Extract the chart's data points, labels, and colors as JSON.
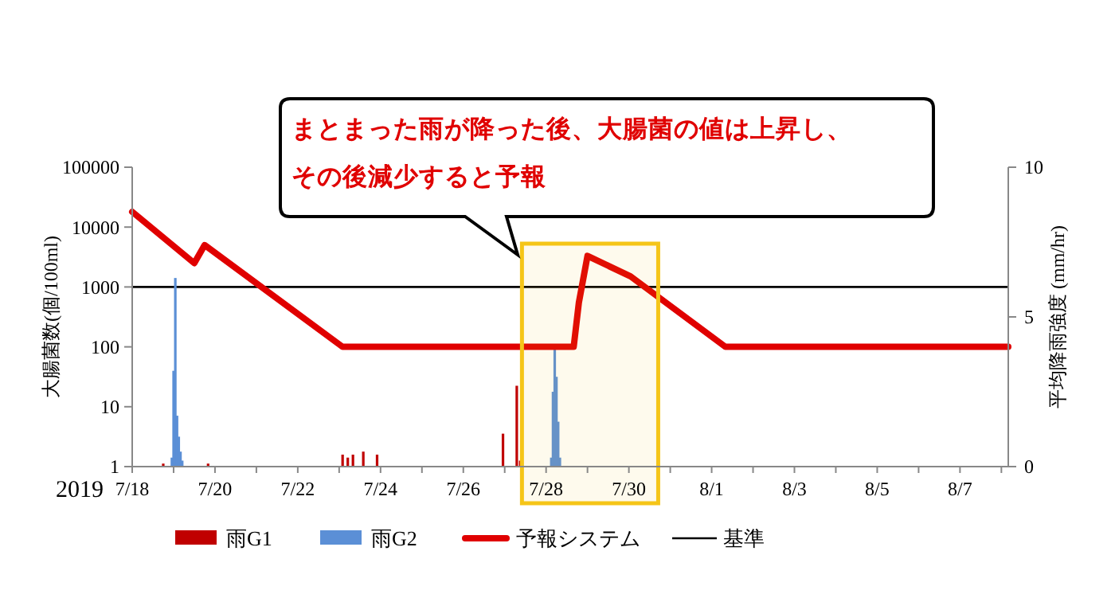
{
  "chart_data": {
    "type": "bar",
    "xlabel": "2019",
    "ylabel": "大腸菌数(個/100ml)",
    "y2label": "平均降雨強度 (mm/hr)",
    "annotations": [
      "まとまった雨が降った後、大腸菌の値は上昇し、",
      "その後減少すると予報"
    ],
    "xlim": [
      "2019-07-18T00:00",
      "2019-08-08T04:00"
    ],
    "xticks": [
      {
        "value": "2019-07-18",
        "label": "7/18"
      },
      {
        "value": "2019-07-19",
        "label": null
      },
      {
        "value": "2019-07-20",
        "label": "7/20"
      },
      {
        "value": "2019-07-21",
        "label": null
      },
      {
        "value": "2019-07-22",
        "label": "7/22"
      },
      {
        "value": "2019-07-23",
        "label": null
      },
      {
        "value": "2019-07-24",
        "label": "7/24"
      },
      {
        "value": "2019-07-25",
        "label": null
      },
      {
        "value": "2019-07-26",
        "label": "7/26"
      },
      {
        "value": "2019-07-27",
        "label": null
      },
      {
        "value": "2019-07-28",
        "label": "7/28"
      },
      {
        "value": "2019-07-29",
        "label": null
      },
      {
        "value": "2019-07-30",
        "label": "7/30"
      },
      {
        "value": "2019-07-31",
        "label": null
      },
      {
        "value": "2019-08-01",
        "label": "8/1"
      },
      {
        "value": "2019-08-02",
        "label": null
      },
      {
        "value": "2019-08-03",
        "label": "8/3"
      },
      {
        "value": "2019-08-04",
        "label": null
      },
      {
        "value": "2019-08-05",
        "label": "8/5"
      },
      {
        "value": "2019-08-06",
        "label": null
      },
      {
        "value": "2019-08-07",
        "label": "8/7"
      },
      {
        "value": "2019-08-08",
        "label": null
      }
    ],
    "ylim": [
      1,
      100000
    ],
    "yticks": [
      1,
      10,
      100,
      1000,
      10000,
      100000
    ],
    "log": "y",
    "y2lim": [
      0,
      10
    ],
    "y2ticks": [
      0,
      5,
      10
    ],
    "series": [
      {
        "name": "雨G1",
        "axis": "y2",
        "color": "#c00000",
        "x": [
          "2019-07-18T18:00",
          "2019-07-19T20:00",
          "2019-07-23T02:00",
          "2019-07-23T05:00",
          "2019-07-23T08:00",
          "2019-07-23T14:00",
          "2019-07-23T22:00",
          "2019-07-26T23:00",
          "2019-07-27T07:00",
          "2019-07-27T09:00"
        ],
        "values": [
          0.1,
          0.1,
          0.4,
          0.3,
          0.4,
          0.5,
          0.4,
          1.1,
          2.7,
          0.2
        ]
      },
      {
        "name": "雨G2",
        "axis": "y2",
        "color": "#5b8fd6",
        "x": [
          "2019-07-18T23:00",
          "2019-07-19T00:00",
          "2019-07-19T01:00",
          "2019-07-19T02:00",
          "2019-07-19T03:00",
          "2019-07-19T04:00",
          "2019-07-19T05:00",
          "2019-07-28T03:00",
          "2019-07-28T04:00",
          "2019-07-28T05:00",
          "2019-07-28T06:00",
          "2019-07-28T07:00",
          "2019-07-28T08:00"
        ],
        "values": [
          0.3,
          3.2,
          6.3,
          1.7,
          1.0,
          0.5,
          0.2,
          0.3,
          2.5,
          4.0,
          3.0,
          1.5,
          0.3
        ]
      },
      {
        "name": "予報システム",
        "type": "line",
        "color": "#e00000",
        "x": [
          "2019-07-18T00:00",
          "2019-07-19T12:00",
          "2019-07-19T18:00",
          "2019-07-23T02:00",
          "2019-07-28T16:00",
          "2019-07-28T19:00",
          "2019-07-29T00:00",
          "2019-07-30T01:00",
          "2019-08-01T08:00",
          "2019-08-08T04:00"
        ],
        "values": [
          18000,
          2500,
          5000,
          100,
          100,
          550,
          3300,
          1500,
          100,
          100
        ]
      }
    ],
    "ref_lines": [
      {
        "axis": "y",
        "value": 1000,
        "label": "基準",
        "color": "#000000"
      }
    ],
    "bands": [
      {
        "axis": "x",
        "from": "2019-07-27T10:00",
        "to": "2019-07-30T17:00",
        "color": "#f5c518"
      }
    ],
    "grid": false,
    "legend": "bottom"
  }
}
